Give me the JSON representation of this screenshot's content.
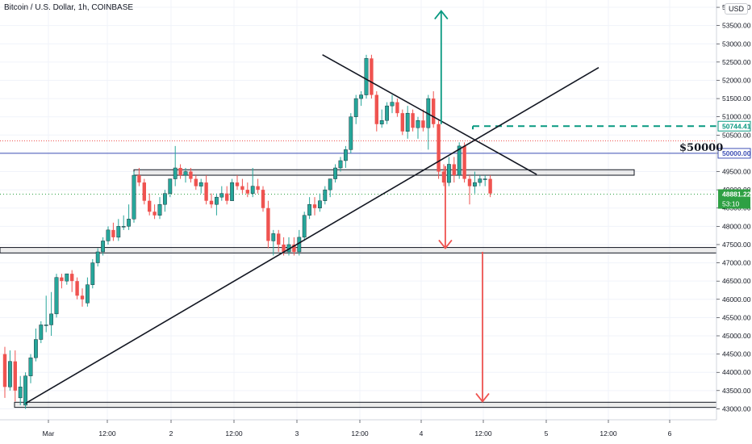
{
  "header": {
    "title": "Bitcoin / U.S. Dollar, 1h, COINBASE",
    "currency_badge": "USD"
  },
  "chart_data": {
    "type": "candlestick",
    "symbol": "BTCUSD",
    "exchange": "COINBASE",
    "interval": "1h",
    "ylim": [
      42700,
      54200
    ],
    "y_ticks": [
      43000,
      43500,
      44000,
      44500,
      45000,
      45500,
      46000,
      46500,
      47000,
      47500,
      48000,
      48500,
      49000,
      49500,
      50000,
      50500,
      51000,
      51500,
      52000,
      52500,
      53000,
      53500,
      54000
    ],
    "y_tick_labels": [
      "43000.00",
      "43500.00",
      "44000.00",
      "44500.00",
      "45000.00",
      "45500.00",
      "46000.00",
      "46500.00",
      "47000.00",
      "47500.00",
      "48000.00",
      "48500.00",
      "49000.00",
      "49500.00",
      "50000.00",
      "50500.00",
      "51000.00",
      "51500.00",
      "52000.00",
      "52500.00",
      "53000.00",
      "53500.00",
      "54000.00"
    ],
    "x_tick_labels": [
      "Mar",
      "12:00",
      "2",
      "12:00",
      "3",
      "12:00",
      "4",
      "12:00",
      "5",
      "12:00",
      "6"
    ],
    "colors": {
      "up": "#26a69a",
      "down": "#ef5350",
      "grid": "#f0f3fa",
      "axis": "#d1d4dc"
    },
    "candles": [
      {
        "o": 44500,
        "h": 44700,
        "l": 43300,
        "c": 43600
      },
      {
        "o": 43600,
        "h": 44600,
        "l": 43500,
        "c": 44300
      },
      {
        "o": 44300,
        "h": 44600,
        "l": 43200,
        "c": 43500
      },
      {
        "o": 43300,
        "h": 43900,
        "l": 43100,
        "c": 43600
      },
      {
        "o": 43100,
        "h": 44000,
        "l": 43000,
        "c": 43900
      },
      {
        "o": 43900,
        "h": 44500,
        "l": 43700,
        "c": 44400
      },
      {
        "o": 44400,
        "h": 45200,
        "l": 44300,
        "c": 44900
      },
      {
        "o": 44900,
        "h": 45400,
        "l": 44800,
        "c": 45300
      },
      {
        "o": 45300,
        "h": 46100,
        "l": 45100,
        "c": 45300
      },
      {
        "o": 45300,
        "h": 46200,
        "l": 45000,
        "c": 45600
      },
      {
        "o": 45600,
        "h": 46700,
        "l": 45500,
        "c": 46600
      },
      {
        "o": 46600,
        "h": 46700,
        "l": 46300,
        "c": 46500
      },
      {
        "o": 46500,
        "h": 46700,
        "l": 46400,
        "c": 46700
      },
      {
        "o": 46700,
        "h": 46800,
        "l": 46200,
        "c": 46500
      },
      {
        "o": 46500,
        "h": 46600,
        "l": 46000,
        "c": 46100
      },
      {
        "o": 46100,
        "h": 46300,
        "l": 45800,
        "c": 46000
      },
      {
        "o": 45900,
        "h": 46600,
        "l": 45800,
        "c": 46400
      },
      {
        "o": 46400,
        "h": 47100,
        "l": 46300,
        "c": 47000
      },
      {
        "o": 47000,
        "h": 47400,
        "l": 46900,
        "c": 47300
      },
      {
        "o": 47300,
        "h": 47700,
        "l": 47200,
        "c": 47600
      },
      {
        "o": 47600,
        "h": 48000,
        "l": 47500,
        "c": 47900
      },
      {
        "o": 47900,
        "h": 48100,
        "l": 47600,
        "c": 47700
      },
      {
        "o": 47700,
        "h": 48200,
        "l": 47600,
        "c": 48000
      },
      {
        "o": 48000,
        "h": 48300,
        "l": 47900,
        "c": 48000
      },
      {
        "o": 48000,
        "h": 48600,
        "l": 47900,
        "c": 48200
      },
      {
        "o": 48200,
        "h": 49500,
        "l": 48100,
        "c": 49400
      },
      {
        "o": 49400,
        "h": 49600,
        "l": 49100,
        "c": 49200
      },
      {
        "o": 49200,
        "h": 49300,
        "l": 48600,
        "c": 48700
      },
      {
        "o": 48700,
        "h": 48900,
        "l": 48300,
        "c": 48400
      },
      {
        "o": 48400,
        "h": 48600,
        "l": 48200,
        "c": 48300
      },
      {
        "o": 48300,
        "h": 48800,
        "l": 48200,
        "c": 48600
      },
      {
        "o": 48600,
        "h": 49000,
        "l": 48400,
        "c": 48900
      },
      {
        "o": 48900,
        "h": 49300,
        "l": 48800,
        "c": 49300
      },
      {
        "o": 49300,
        "h": 50200,
        "l": 49100,
        "c": 49600
      },
      {
        "o": 49600,
        "h": 49700,
        "l": 49300,
        "c": 49400
      },
      {
        "o": 49400,
        "h": 49600,
        "l": 49200,
        "c": 49500
      },
      {
        "o": 49500,
        "h": 49600,
        "l": 49200,
        "c": 49300
      },
      {
        "o": 49300,
        "h": 49400,
        "l": 49000,
        "c": 49100
      },
      {
        "o": 49100,
        "h": 49300,
        "l": 48900,
        "c": 49200
      },
      {
        "o": 49200,
        "h": 49400,
        "l": 48600,
        "c": 48700
      },
      {
        "o": 48700,
        "h": 48900,
        "l": 48500,
        "c": 48600
      },
      {
        "o": 48600,
        "h": 48900,
        "l": 48300,
        "c": 48800
      },
      {
        "o": 48800,
        "h": 49100,
        "l": 48700,
        "c": 48900
      },
      {
        "o": 48900,
        "h": 49100,
        "l": 48600,
        "c": 48700
      },
      {
        "o": 48700,
        "h": 49300,
        "l": 48700,
        "c": 49200
      },
      {
        "o": 49200,
        "h": 49400,
        "l": 49000,
        "c": 49100
      },
      {
        "o": 49100,
        "h": 49300,
        "l": 48900,
        "c": 49000
      },
      {
        "o": 49000,
        "h": 49200,
        "l": 48800,
        "c": 48900
      },
      {
        "o": 48900,
        "h": 49600,
        "l": 48800,
        "c": 49100
      },
      {
        "o": 49100,
        "h": 49300,
        "l": 48900,
        "c": 49000
      },
      {
        "o": 49000,
        "h": 49100,
        "l": 48400,
        "c": 48500
      },
      {
        "o": 48500,
        "h": 48700,
        "l": 47400,
        "c": 47600
      },
      {
        "o": 47600,
        "h": 47900,
        "l": 47200,
        "c": 47800
      },
      {
        "o": 47800,
        "h": 47900,
        "l": 47300,
        "c": 47500
      },
      {
        "o": 47500,
        "h": 47700,
        "l": 47200,
        "c": 47300
      },
      {
        "o": 47300,
        "h": 47700,
        "l": 47200,
        "c": 47500
      },
      {
        "o": 47500,
        "h": 47700,
        "l": 47200,
        "c": 47300
      },
      {
        "o": 47300,
        "h": 47900,
        "l": 47200,
        "c": 47700
      },
      {
        "o": 47700,
        "h": 48400,
        "l": 47600,
        "c": 48300
      },
      {
        "o": 48300,
        "h": 48800,
        "l": 48200,
        "c": 48600
      },
      {
        "o": 48600,
        "h": 48800,
        "l": 48300,
        "c": 48500
      },
      {
        "o": 48500,
        "h": 48900,
        "l": 48400,
        "c": 48700
      },
      {
        "o": 48700,
        "h": 49100,
        "l": 48600,
        "c": 49000
      },
      {
        "o": 49000,
        "h": 49300,
        "l": 48800,
        "c": 49300
      },
      {
        "o": 49300,
        "h": 49700,
        "l": 49200,
        "c": 49600
      },
      {
        "o": 49600,
        "h": 49900,
        "l": 49500,
        "c": 49800
      },
      {
        "o": 49800,
        "h": 50200,
        "l": 49600,
        "c": 50100
      },
      {
        "o": 50100,
        "h": 51100,
        "l": 50000,
        "c": 51000
      },
      {
        "o": 51000,
        "h": 51600,
        "l": 50800,
        "c": 51500
      },
      {
        "o": 51500,
        "h": 51700,
        "l": 51300,
        "c": 51600
      },
      {
        "o": 51600,
        "h": 52700,
        "l": 51500,
        "c": 52600
      },
      {
        "o": 52600,
        "h": 52700,
        "l": 51500,
        "c": 51600
      },
      {
        "o": 51600,
        "h": 51700,
        "l": 50600,
        "c": 50800
      },
      {
        "o": 50800,
        "h": 51200,
        "l": 50700,
        "c": 50900
      },
      {
        "o": 50900,
        "h": 51400,
        "l": 50800,
        "c": 51300
      },
      {
        "o": 51300,
        "h": 51600,
        "l": 51100,
        "c": 51400
      },
      {
        "o": 51400,
        "h": 51500,
        "l": 51000,
        "c": 51100
      },
      {
        "o": 51100,
        "h": 51200,
        "l": 50500,
        "c": 50600
      },
      {
        "o": 50600,
        "h": 51300,
        "l": 50400,
        "c": 51100
      },
      {
        "o": 51100,
        "h": 51200,
        "l": 50600,
        "c": 50700
      },
      {
        "o": 50700,
        "h": 51000,
        "l": 50400,
        "c": 50900
      },
      {
        "o": 50900,
        "h": 51200,
        "l": 50600,
        "c": 50700
      },
      {
        "o": 50700,
        "h": 51600,
        "l": 50100,
        "c": 51500
      },
      {
        "o": 51500,
        "h": 51700,
        "l": 50700,
        "c": 50800
      },
      {
        "o": 50800,
        "h": 50900,
        "l": 49300,
        "c": 49500
      },
      {
        "o": 49500,
        "h": 49700,
        "l": 49100,
        "c": 49200
      },
      {
        "o": 49200,
        "h": 49900,
        "l": 49100,
        "c": 49700
      },
      {
        "o": 49700,
        "h": 49900,
        "l": 49200,
        "c": 49400
      },
      {
        "o": 49400,
        "h": 50300,
        "l": 49300,
        "c": 50200
      },
      {
        "o": 50200,
        "h": 50300,
        "l": 49200,
        "c": 49300
      },
      {
        "o": 49300,
        "h": 49400,
        "l": 48600,
        "c": 49100
      },
      {
        "o": 49100,
        "h": 49500,
        "l": 48900,
        "c": 49200
      },
      {
        "o": 49200,
        "h": 49400,
        "l": 49100,
        "c": 49300
      },
      {
        "o": 49300,
        "h": 49400,
        "l": 49100,
        "c": 49300
      },
      {
        "o": 49300,
        "h": 49400,
        "l": 48800,
        "c": 48900
      }
    ],
    "horizontal_levels": {
      "round_number": {
        "value": 50000,
        "label": "$50000",
        "axis_label": "50000.00",
        "color": "#3f51b5"
      },
      "target": {
        "value": 50744.41,
        "axis_label": "50744.41",
        "color": "#089981"
      },
      "last_price": {
        "value": 48881.22,
        "axis_label": "48881.22",
        "countdown": "53:10",
        "color": "#2ea043"
      },
      "dotted_high": {
        "value": 50340,
        "color": "#ef5350"
      }
    },
    "zones": [
      {
        "name": "resistance-zone",
        "from": 49400,
        "to": 49550
      },
      {
        "name": "support-zone-mid",
        "from": 47270,
        "to": 47420
      },
      {
        "name": "support-zone-low",
        "from": 43040,
        "to": 43180
      }
    ],
    "trendlines": [
      {
        "name": "ascending-trendline",
        "p1": {
          "i": 4.0,
          "v": 43150
        },
        "p2": {
          "i": 115,
          "v": 52350
        }
      },
      {
        "name": "descending-trendline",
        "p1": {
          "i": 61.5,
          "v": 52700
        },
        "p2": {
          "i": 103,
          "v": 49420
        }
      }
    ],
    "arrows": [
      {
        "name": "bullish-target-arrow",
        "i": 84.5,
        "from": 50800,
        "to": 53900,
        "color": "#089981"
      },
      {
        "name": "short-bearish-arrow",
        "i": 85.3,
        "from": 49650,
        "to": 47400,
        "color": "#ef5350"
      },
      {
        "name": "long-bearish-arrow",
        "i": 92.5,
        "from": 47300,
        "to": 43200,
        "color": "#ef5350"
      }
    ]
  }
}
